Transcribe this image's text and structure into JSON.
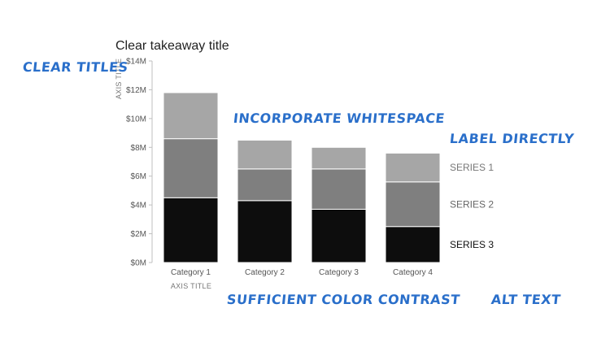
{
  "annotations": {
    "clear_titles": "CLEAR TITLES",
    "whitespace": "INCORPORATE WHITESPACE",
    "label_directly": "LABEL DIRECTLY",
    "color_contrast": "SUFFICIENT COLOR CONTRAST",
    "alt_text": "ALT TEXT"
  },
  "colors": {
    "series1": "#a6a6a6",
    "series2": "#7f7f7f",
    "series3": "#0d0d0d",
    "annotation": "#2a6fca"
  },
  "chart_data": {
    "type": "bar",
    "stacked": true,
    "title": "Clear takeaway title",
    "xlabel": "AXIS TITLE",
    "ylabel": "AXIS TITLE",
    "ylim": [
      0,
      14
    ],
    "yticks": [
      0,
      2,
      4,
      6,
      8,
      10,
      12,
      14
    ],
    "ytick_labels": [
      "$0M",
      "$2M",
      "$4M",
      "$6M",
      "$8M",
      "$10M",
      "$12M",
      "$14M"
    ],
    "categories": [
      "Category 1",
      "Category 2",
      "Category 3",
      "Category 4"
    ],
    "series": [
      {
        "name": "SERIES 3",
        "values": [
          4.5,
          4.3,
          3.7,
          2.5
        ],
        "color": "#0d0d0d"
      },
      {
        "name": "SERIES 2",
        "values": [
          4.1,
          2.2,
          2.8,
          3.1
        ],
        "color": "#7f7f7f"
      },
      {
        "name": "SERIES 1",
        "values": [
          3.2,
          2.0,
          1.5,
          2.0
        ],
        "color": "#a6a6a6"
      }
    ],
    "legend": "direct-labels-right",
    "grid": false
  }
}
